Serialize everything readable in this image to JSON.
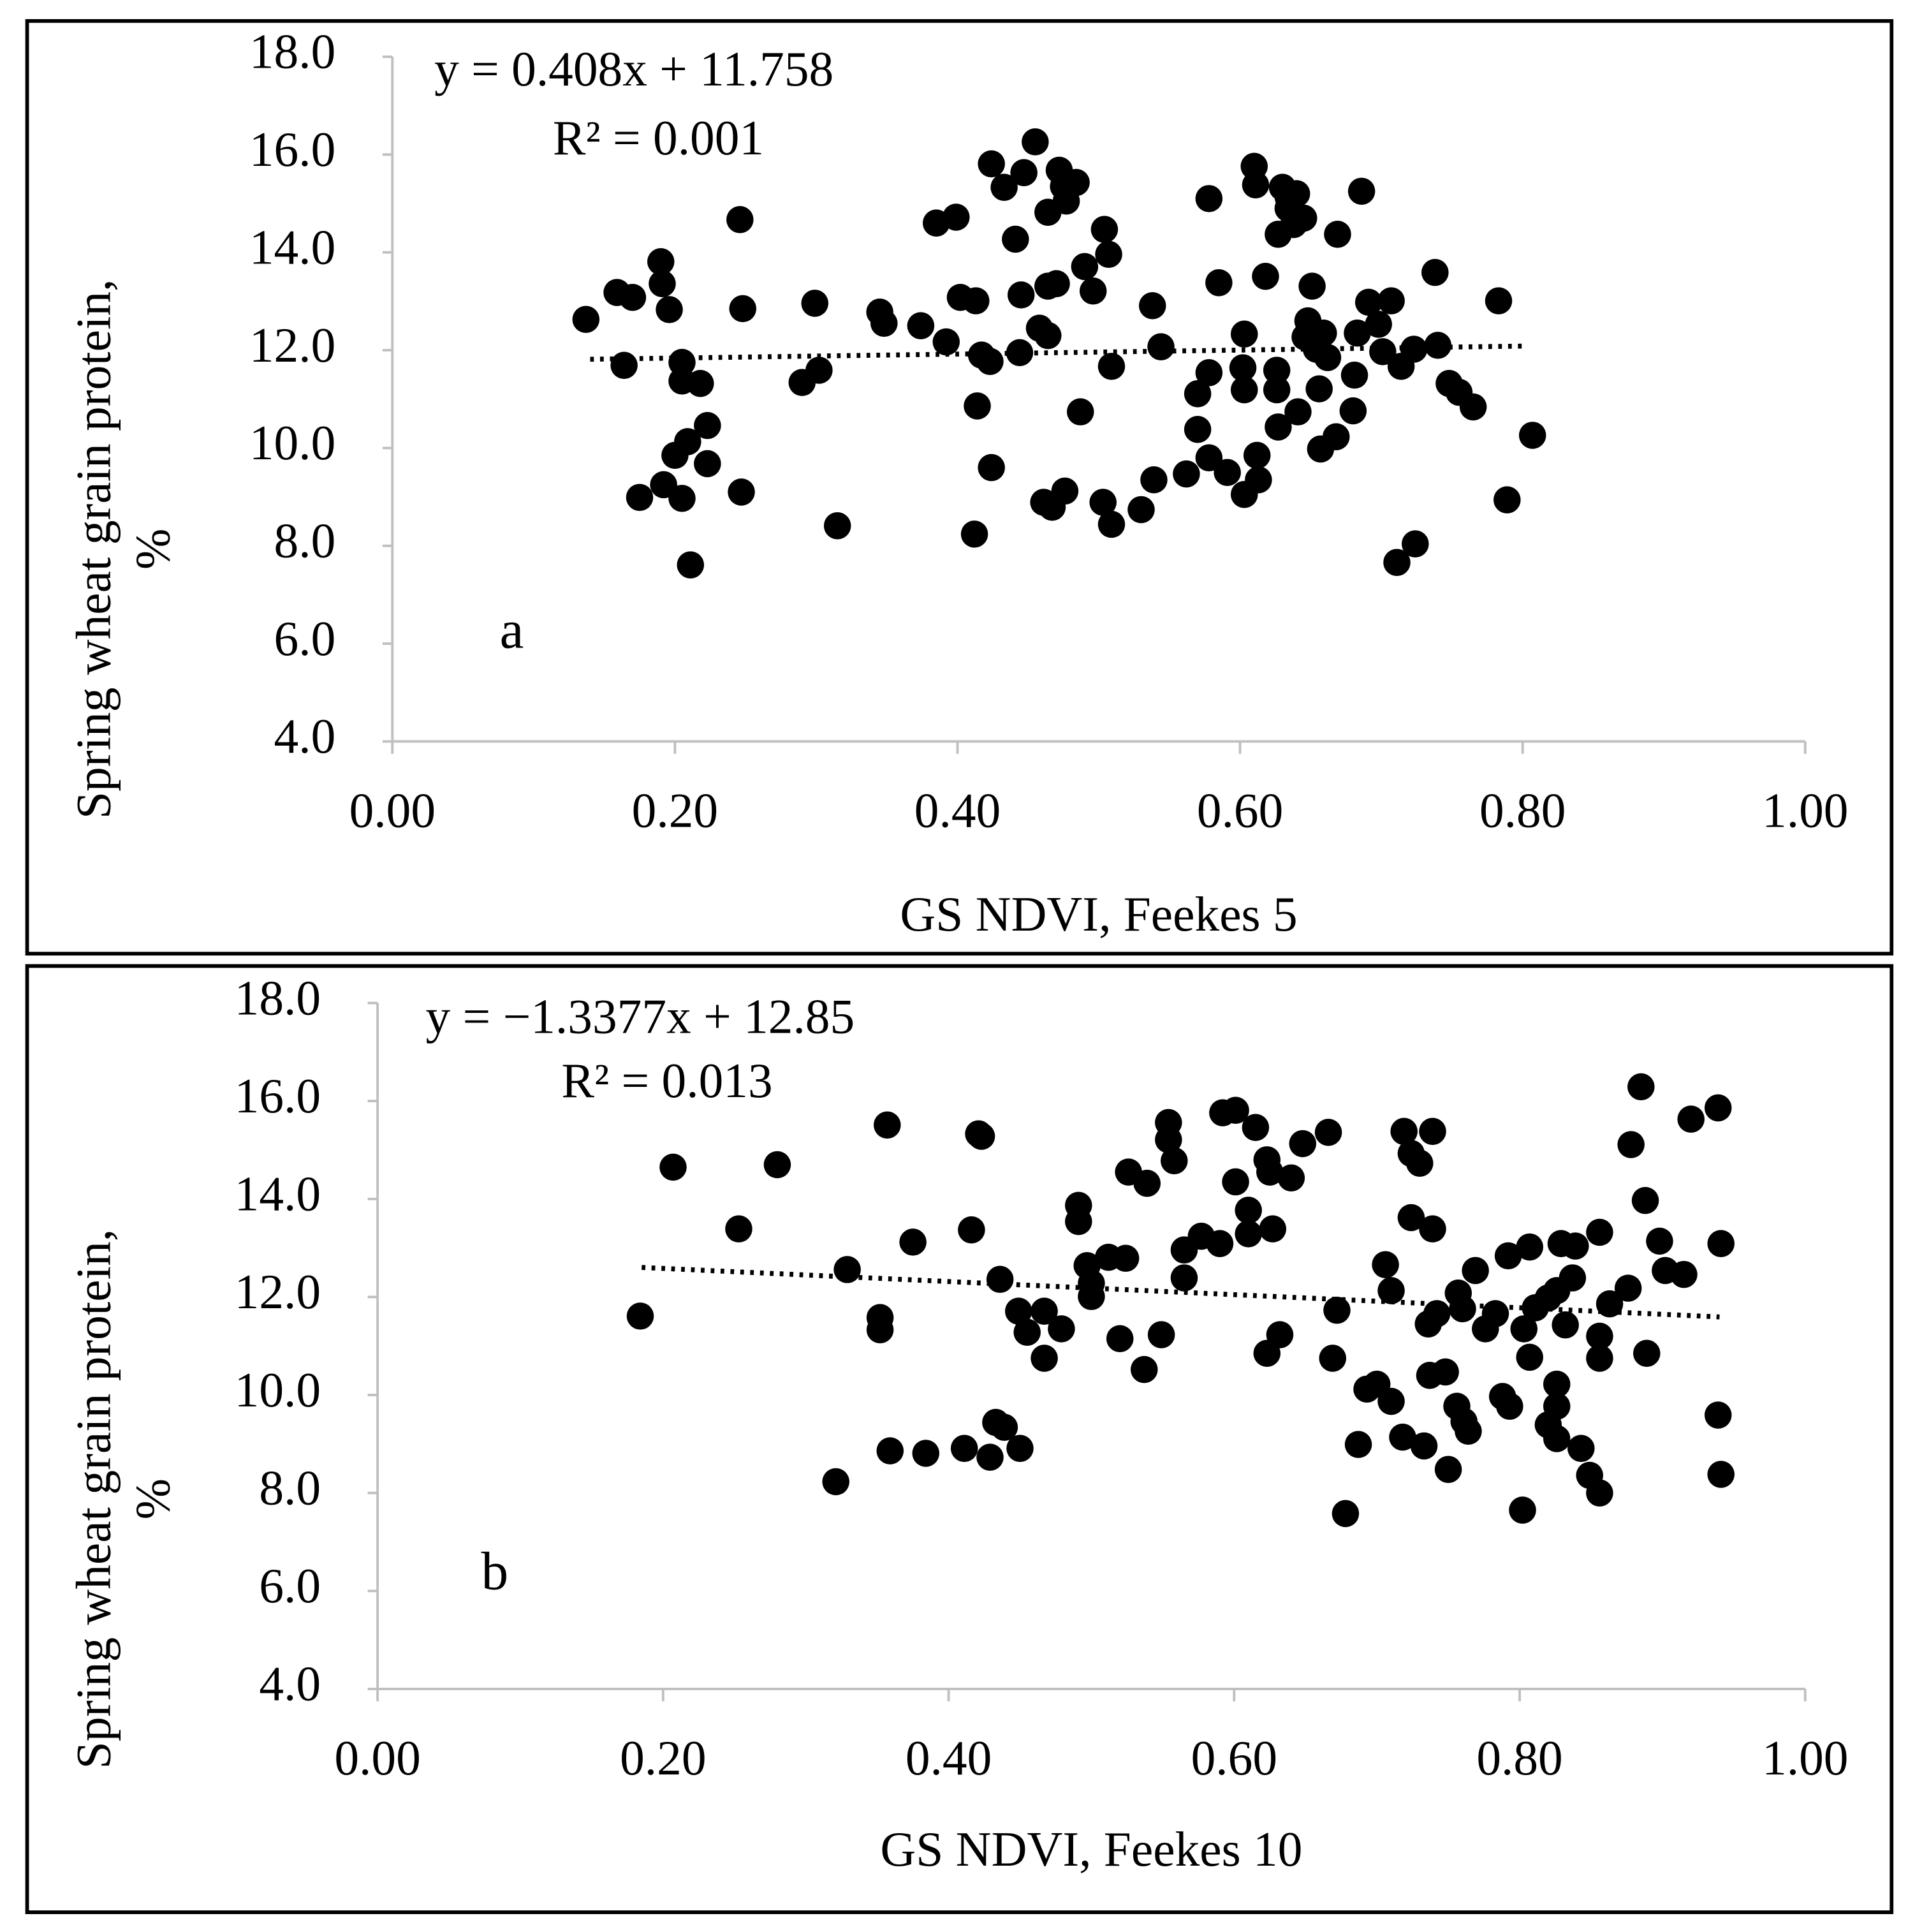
{
  "chart_data": [
    {
      "type": "scatter",
      "xlabel": "GS NDVI, Feekes 5",
      "ylabel": [
        "Spring wheat grain protein,",
        "%"
      ],
      "annotations": [
        "y = 0.408x + 11.758",
        "R² = 0.001",
        "a"
      ],
      "xlim": [
        0,
        1
      ],
      "ylim": [
        4,
        18
      ],
      "xticks": [
        {
          "value": 0,
          "label": "0.00"
        },
        {
          "value": 0.2,
          "label": "0.20"
        },
        {
          "value": 0.4,
          "label": "0.40"
        },
        {
          "value": 0.6,
          "label": "0.60"
        },
        {
          "value": 0.8,
          "label": "0.80"
        },
        {
          "value": 1,
          "label": "1.00"
        }
      ],
      "yticks": [
        {
          "value": 4,
          "label": "4.0"
        },
        {
          "value": 6,
          "label": "6.0"
        },
        {
          "value": 8,
          "label": "8.0"
        },
        {
          "value": 10,
          "label": "10.0"
        },
        {
          "value": 12,
          "label": "12.0"
        },
        {
          "value": 14,
          "label": "14.0"
        },
        {
          "value": 16,
          "label": "16.0"
        },
        {
          "value": 18,
          "label": "18.0"
        }
      ],
      "grid": false,
      "series": [
        {
          "color": "#000000",
          "x": [
            0.137,
            0.159,
            0.17,
            0.164,
            0.19,
            0.191,
            0.196,
            0.175,
            0.192,
            0.205,
            0.205,
            0.205,
            0.218,
            0.2,
            0.209,
            0.223,
            0.223,
            0.211,
            0.246,
            0.248,
            0.247,
            0.299,
            0.29,
            0.302,
            0.315,
            0.345,
            0.348,
            0.374,
            0.385,
            0.399,
            0.392,
            0.402,
            0.413,
            0.417,
            0.423,
            0.414,
            0.412,
            0.424,
            0.424,
            0.433,
            0.447,
            0.455,
            0.472,
            0.475,
            0.484,
            0.477,
            0.464,
            0.441,
            0.445,
            0.464,
            0.47,
            0.458,
            0.464,
            0.444,
            0.49,
            0.496,
            0.504,
            0.507,
            0.509,
            0.487,
            0.461,
            0.467,
            0.476,
            0.503,
            0.509,
            0.53,
            0.538,
            0.544,
            0.539,
            0.562,
            0.578,
            0.585,
            0.57,
            0.578,
            0.57,
            0.578,
            0.591,
            0.603,
            0.602,
            0.603,
            0.612,
            0.613,
            0.603,
            0.61,
            0.611,
            0.618,
            0.63,
            0.634,
            0.64,
            0.634,
            0.645,
            0.627,
            0.638,
            0.626,
            0.626,
            0.627,
            0.641,
            0.648,
            0.651,
            0.646,
            0.654,
            0.659,
            0.662,
            0.656,
            0.657,
            0.668,
            0.669,
            0.683,
            0.681,
            0.68,
            0.686,
            0.691,
            0.698,
            0.707,
            0.701,
            0.714,
            0.723,
            0.74,
            0.738,
            0.748,
            0.755,
            0.765,
            0.711,
            0.724,
            0.783,
            0.789,
            0.807
          ],
          "values": [
            12.63,
            13.18,
            13.08,
            11.69,
            13.81,
            13.36,
            12.83,
            8.99,
            9.25,
            8.97,
            11.75,
            11.37,
            11.32,
            9.85,
            10.13,
            10.46,
            9.68,
            7.61,
            14.67,
            12.85,
            9.1,
            12.96,
            11.34,
            11.59,
            8.41,
            12.78,
            12.55,
            12.5,
            14.6,
            14.72,
            12.17,
            13.08,
            13.01,
            11.9,
            11.77,
            10.86,
            8.24,
            9.6,
            15.81,
            15.33,
            15.63,
            16.26,
            15.68,
            15.35,
            15.43,
            15.05,
            14.82,
            14.27,
            13.13,
            13.31,
            13.36,
            12.45,
            12.3,
            11.95,
            13.71,
            13.21,
            14.47,
            13.96,
            11.67,
            10.74,
            8.89,
            8.79,
            9.12,
            8.89,
            8.44,
            8.74,
            12.91,
            12.07,
            9.35,
            9.47,
            15.1,
            13.38,
            11.11,
            11.54,
            10.38,
            9.8,
            9.5,
            12.33,
            11.64,
            11.19,
            9.85,
            9.35,
            9.05,
            15.76,
            15.38,
            13.51,
            15.33,
            15.13,
            15.2,
            14.9,
            14.7,
            14.37,
            14.57,
            11.59,
            11.19,
            10.43,
            10.74,
            12.6,
            13.31,
            12.27,
            12.02,
            12.35,
            11.85,
            11.21,
            9.98,
            10.23,
            14.37,
            12.35,
            11.49,
            10.76,
            15.25,
            12.98,
            12.53,
            13.01,
            11.97,
            11.67,
            12.02,
            12.1,
            13.59,
            11.32,
            11.14,
            10.84,
            7.66,
            8.04,
            13.01,
            8.94,
            10.26
          ]
        }
      ],
      "trendline": {
        "color": "#000000",
        "x": [
          0.14,
          0.8
        ],
        "values": [
          11.815,
          12.084
        ]
      }
    },
    {
      "type": "scatter",
      "xlabel": "GS NDVI, Feekes 10",
      "ylabel": [
        "Spring wheat grain protein,",
        "%"
      ],
      "annotations": [
        "y = −1.3377x + 12.85",
        "R² = 0.013",
        "b"
      ],
      "xlim": [
        0,
        1
      ],
      "ylim": [
        4,
        18
      ],
      "xticks": [
        {
          "value": 0,
          "label": "0.00"
        },
        {
          "value": 0.2,
          "label": "0.20"
        },
        {
          "value": 0.4,
          "label": "0.40"
        },
        {
          "value": 0.6,
          "label": "0.60"
        },
        {
          "value": 0.8,
          "label": "0.80"
        },
        {
          "value": 1,
          "label": "1.00"
        }
      ],
      "yticks": [
        {
          "value": 4,
          "label": "4.0"
        },
        {
          "value": 6,
          "label": "6.0"
        },
        {
          "value": 8,
          "label": "8.0"
        },
        {
          "value": 10,
          "label": "10.0"
        },
        {
          "value": 12,
          "label": "12.0"
        },
        {
          "value": 14,
          "label": "14.0"
        },
        {
          "value": 16,
          "label": "16.0"
        },
        {
          "value": 18,
          "label": "18.0"
        }
      ],
      "grid": false,
      "series": [
        {
          "color": "#000000",
          "x": [
            0.184,
            0.207,
            0.253,
            0.28,
            0.329,
            0.321,
            0.357,
            0.352,
            0.352,
            0.359,
            0.375,
            0.384,
            0.416,
            0.421,
            0.423,
            0.411,
            0.429,
            0.433,
            0.439,
            0.436,
            0.449,
            0.45,
            0.455,
            0.467,
            0.467,
            0.479,
            0.491,
            0.491,
            0.497,
            0.5,
            0.5,
            0.512,
            0.524,
            0.52,
            0.526,
            0.539,
            0.537,
            0.549,
            0.554,
            0.554,
            0.558,
            0.565,
            0.565,
            0.577,
            0.59,
            0.592,
            0.601,
            0.601,
            0.61,
            0.61,
            0.615,
            0.623,
            0.625,
            0.627,
            0.64,
            0.623,
            0.632,
            0.648,
            0.666,
            0.672,
            0.669,
            0.678,
            0.687,
            0.693,
            0.7,
            0.706,
            0.71,
            0.71,
            0.719,
            0.724,
            0.73,
            0.739,
            0.739,
            0.724,
            0.736,
            0.742,
            0.748,
            0.737,
            0.718,
            0.733,
            0.75,
            0.757,
            0.76,
            0.756,
            0.761,
            0.764,
            0.769,
            0.776,
            0.783,
            0.788,
            0.793,
            0.792,
            0.807,
            0.802,
            0.803,
            0.807,
            0.811,
            0.82,
            0.826,
            0.826,
            0.826,
            0.82,
            0.826,
            0.829,
            0.837,
            0.839,
            0.832,
            0.843,
            0.849,
            0.856,
            0.856,
            0.856,
            0.856,
            0.863,
            0.876,
            0.878,
            0.885,
            0.888,
            0.889,
            0.898,
            0.902,
            0.915,
            0.92,
            0.939,
            0.941,
            0.939,
            0.941
          ],
          "values": [
            11.61,
            14.65,
            13.39,
            14.7,
            12.56,
            8.23,
            15.51,
            11.58,
            11.33,
            8.86,
            13.12,
            8.81,
            13.37,
            15.33,
            15.28,
            8.91,
            8.73,
            9.44,
            9.34,
            12.36,
            11.71,
            8.91,
            11.28,
            11.71,
            10.75,
            11.35,
            13.87,
            13.54,
            12.64,
            12.01,
            12.28,
            12.81,
            12.79,
            11.15,
            14.55,
            14.32,
            10.52,
            11.23,
            15.56,
            15.21,
            14.78,
            12.96,
            12.39,
            13.24,
            13.09,
            15.76,
            15.81,
            14.35,
            13.77,
            13.29,
            15.46,
            14.8,
            14.55,
            13.39,
            14.43,
            10.85,
            11.23,
            15.13,
            15.36,
            11.73,
            10.75,
            7.58,
            8.99,
            10.12,
            10.22,
            12.66,
            12.13,
            9.87,
            15.38,
            14.93,
            14.73,
            15.38,
            13.39,
            13.62,
            11.45,
            11.66,
            10.47,
            10.4,
            9.14,
            8.96,
            8.48,
            12.08,
            11.76,
            9.77,
            9.46,
            9.26,
            12.54,
            11.35,
            11.66,
            9.97,
            9.77,
            12.84,
            13.02,
            7.65,
            11.35,
            10.77,
            11.78,
            11.98,
            12.13,
            10.22,
            9.77,
            9.39,
            9.11,
            13.09,
            12.39,
            13.04,
            11.43,
            8.91,
            8.36,
            8.0,
            13.32,
            11.2,
            10.75,
            11.86,
            12.18,
            15.11,
            16.29,
            13.97,
            10.85,
            13.14,
            12.54,
            12.46,
            15.63,
            15.86,
            13.09,
            9.59,
            8.38
          ]
        }
      ],
      "trendline": {
        "color": "#000000",
        "x": [
          0.185,
          0.94
        ],
        "values": [
          12.603,
          11.593
        ]
      }
    }
  ]
}
